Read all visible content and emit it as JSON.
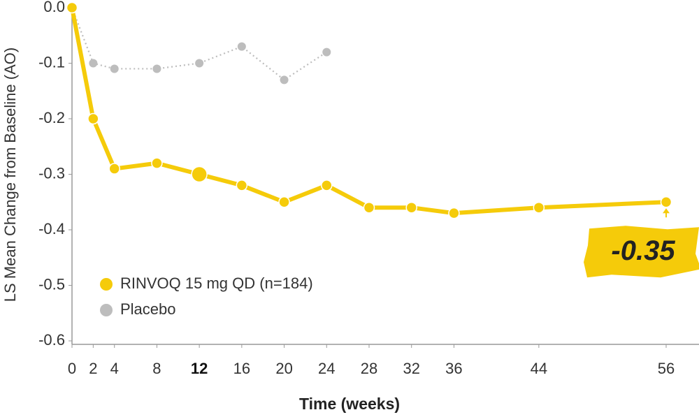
{
  "chart_data": {
    "type": "line",
    "y_label": "LS Mean Change from Baseline (AO)",
    "x_label": "Time (weeks)",
    "x": [
      0,
      2,
      4,
      8,
      12,
      16,
      20,
      24,
      28,
      32,
      36,
      44,
      56
    ],
    "series": [
      {
        "name": "RINVOQ 15 mg QD (n=184)",
        "color": "#f5cb0a",
        "style": "solid",
        "values": [
          0.0,
          -0.2,
          -0.29,
          -0.28,
          -0.3,
          -0.32,
          -0.35,
          -0.32,
          -0.36,
          -0.36,
          -0.37,
          -0.36,
          -0.35
        ]
      },
      {
        "name": "Placebo",
        "color": "#bdbdbd",
        "style": "dotted",
        "values": [
          0.0,
          -0.1,
          -0.11,
          -0.11,
          -0.1,
          -0.07,
          -0.13,
          -0.08,
          null,
          null,
          null,
          null,
          null
        ]
      }
    ],
    "annotation": "-0.35",
    "xlim": [
      0,
      56
    ],
    "ylim": [
      -0.6,
      0
    ],
    "xticks": [
      0,
      2,
      4,
      8,
      12,
      16,
      20,
      24,
      28,
      32,
      36,
      44,
      56
    ],
    "yticks": [
      {
        "value": 0,
        "label": "0.0"
      },
      -0.1,
      -0.2,
      -0.3,
      -0.4,
      -0.5,
      -0.6
    ],
    "emphasized_xtick": 12,
    "legend": "lower-left"
  }
}
